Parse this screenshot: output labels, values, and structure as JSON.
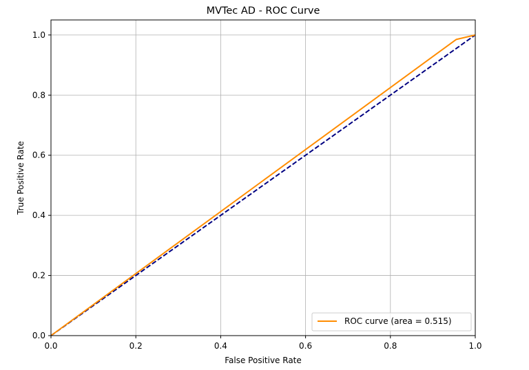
{
  "chart_data": {
    "type": "line",
    "title": "MVTec AD - ROC Curve",
    "xlabel": "False Positive Rate",
    "ylabel": "True Positive Rate",
    "xlim": [
      0.0,
      1.0
    ],
    "ylim": [
      0.0,
      1.05
    ],
    "xticks": [
      "0.0",
      "0.2",
      "0.4",
      "0.6",
      "0.8",
      "1.0"
    ],
    "yticks": [
      "0.0",
      "0.2",
      "0.4",
      "0.6",
      "0.8",
      "1.0"
    ],
    "grid": true,
    "legend_position": "lower-right",
    "series": [
      {
        "name": "ROC curve (area = 0.515)",
        "color": "#ff8c00",
        "style": "solid",
        "x": [
          0.0,
          0.955,
          1.0
        ],
        "y": [
          0.0,
          0.985,
          1.0
        ]
      },
      {
        "color": "#000080",
        "style": "dashed",
        "x": [
          0.0,
          1.0
        ],
        "y": [
          0.0,
          1.0
        ]
      }
    ]
  }
}
